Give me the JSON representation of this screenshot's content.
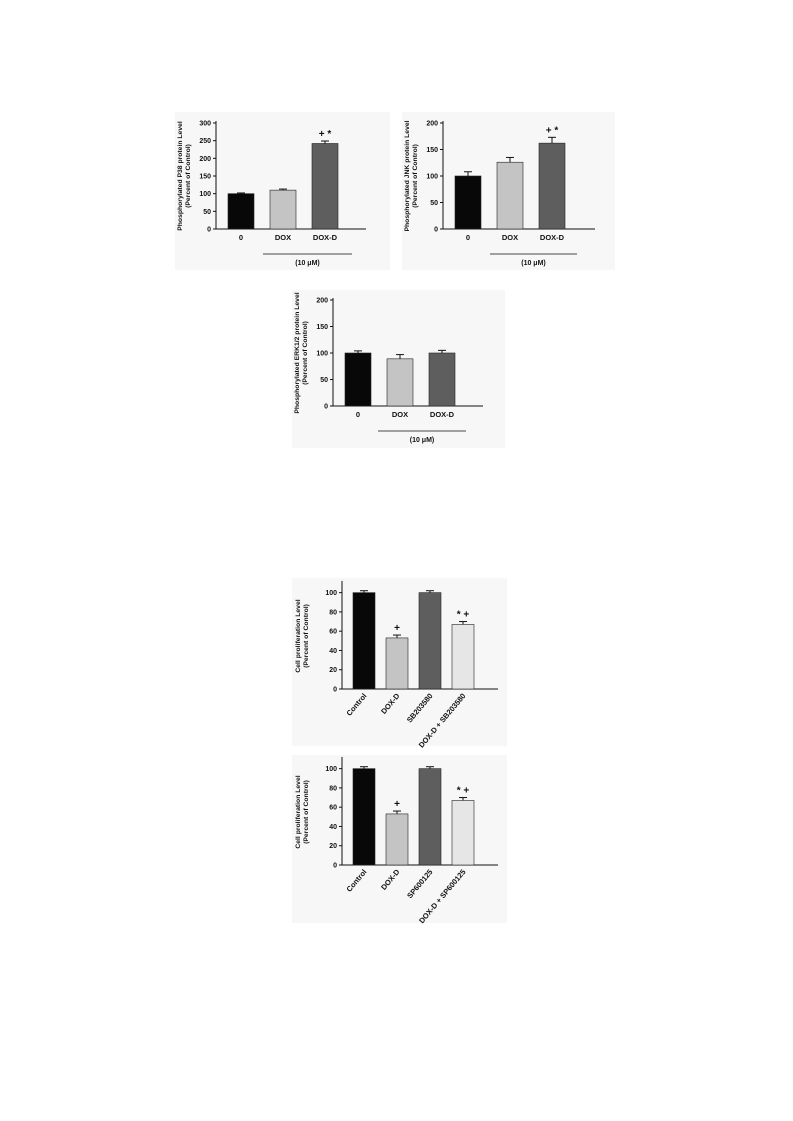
{
  "colors": {
    "black": "#080808",
    "light": "#c4c4c4",
    "dark": "#5e5e5e",
    "pale": "#e6e6e6"
  },
  "chart_data": [
    {
      "id": "p38",
      "type": "bar",
      "ylabel_line1": "Phosphorylated P38 protein Level",
      "ylabel_line2": "(Percent of Control)",
      "ylim": [
        0,
        300
      ],
      "yticks": [
        "0",
        "50",
        "100",
        "150",
        "200",
        "250",
        "300"
      ],
      "categories": [
        "0",
        "DOX",
        "DOX-D"
      ],
      "values": [
        100,
        110,
        242
      ],
      "errors": [
        2,
        3,
        7
      ],
      "bar_colors": [
        "black",
        "light",
        "dark"
      ],
      "annotations": [
        "",
        "",
        "+ *"
      ],
      "concentration": "(10 μM)",
      "rotated_labels": false
    },
    {
      "id": "jnk",
      "type": "bar",
      "ylabel_line1": "Phosphorylated JNK protein Level",
      "ylabel_line2": "(Percent of Control)",
      "ylim": [
        0,
        200
      ],
      "yticks": [
        "0",
        "50",
        "100",
        "150",
        "200"
      ],
      "categories": [
        "0",
        "DOX",
        "DOX-D"
      ],
      "values": [
        100,
        126,
        162
      ],
      "errors": [
        8,
        9,
        11
      ],
      "bar_colors": [
        "black",
        "light",
        "dark"
      ],
      "annotations": [
        "",
        "",
        "+ *"
      ],
      "concentration": "(10 μM)",
      "rotated_labels": false
    },
    {
      "id": "erk",
      "type": "bar",
      "ylabel_line1": "Phosphorylated ERK1/2 protein Level",
      "ylabel_line2": "(Percent of Control)",
      "ylim": [
        0,
        200
      ],
      "yticks": [
        "0",
        "50",
        "100",
        "150",
        "200"
      ],
      "categories": [
        "0",
        "DOX",
        "DOX-D"
      ],
      "values": [
        100,
        89,
        100
      ],
      "errors": [
        4,
        8,
        5
      ],
      "bar_colors": [
        "black",
        "light",
        "dark"
      ],
      "annotations": [
        "",
        "",
        ""
      ],
      "concentration": "(10 μM)",
      "rotated_labels": false
    },
    {
      "id": "prolif-sb",
      "type": "bar",
      "ylabel_line1": "Cell proliferation Level",
      "ylabel_line2": "(Percent of Control)",
      "ylim": [
        0,
        110
      ],
      "yticks": [
        "0",
        "20",
        "40",
        "60",
        "80",
        "100"
      ],
      "categories": [
        "Control",
        "DOX-D",
        "SB203580",
        "DOX-D + SB203580"
      ],
      "values": [
        100,
        53,
        100,
        67
      ],
      "errors": [
        2,
        3,
        2,
        3
      ],
      "bar_colors": [
        "black",
        "light",
        "dark",
        "pale"
      ],
      "annotations": [
        "",
        "+",
        "",
        "* +"
      ],
      "concentration": "",
      "rotated_labels": true
    },
    {
      "id": "prolif-sp",
      "type": "bar",
      "ylabel_line1": "Cell proliferation Level",
      "ylabel_line2": "(Percent of Control)",
      "ylim": [
        0,
        110
      ],
      "yticks": [
        "0",
        "20",
        "40",
        "60",
        "80",
        "100"
      ],
      "categories": [
        "Control",
        "DOX-D",
        "SP600125",
        "DOX-D + SP600125"
      ],
      "values": [
        100,
        53,
        100,
        67
      ],
      "errors": [
        2,
        3,
        2,
        3
      ],
      "bar_colors": [
        "black",
        "light",
        "dark",
        "pale"
      ],
      "annotations": [
        "",
        "+",
        "",
        "* +"
      ],
      "concentration": "",
      "rotated_labels": true
    }
  ]
}
